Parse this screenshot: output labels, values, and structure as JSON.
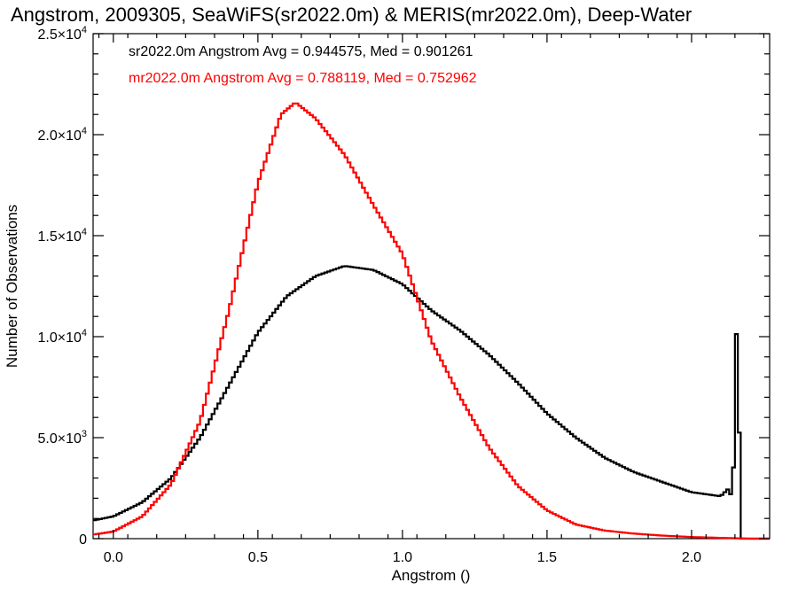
{
  "chart_data": {
    "type": "line",
    "title": "Angstrom, 2009305, SeaWiFS(sr2022.0m) & MERIS(mr2022.0m), Deep-Water",
    "xlabel": "Angstrom ()",
    "ylabel": "Number of Observations",
    "xlim": [
      -0.07,
      2.27
    ],
    "ylim": [
      0,
      25000
    ],
    "xticks": [
      {
        "value": 0.0,
        "label": "0.0"
      },
      {
        "value": 0.5,
        "label": "0.5"
      },
      {
        "value": 1.0,
        "label": "1.0"
      },
      {
        "value": 1.5,
        "label": "1.5"
      },
      {
        "value": 2.0,
        "label": "2.0"
      }
    ],
    "yticks": [
      {
        "value": 0,
        "mant": "0",
        "exp": ""
      },
      {
        "value": 5000,
        "mant": "5.0×10",
        "exp": "3"
      },
      {
        "value": 10000,
        "mant": "1.0×10",
        "exp": "4"
      },
      {
        "value": 15000,
        "mant": "1.5×10",
        "exp": "4"
      },
      {
        "value": 20000,
        "mant": "2.0×10",
        "exp": "4"
      },
      {
        "value": 25000,
        "mant": "2.5×10",
        "exp": "4"
      }
    ],
    "grid": false,
    "legend": [
      {
        "text": "sr2022.0m Angstrom Avg = 0.944575, Med = 0.901261",
        "color": "#000000"
      },
      {
        "text": "mr2022.0m Angstrom Avg = 0.788119, Med = 0.752962",
        "color": "#ff0000"
      }
    ],
    "series": [
      {
        "name": "sr2022.0m",
        "color": "#000000",
        "points": [
          [
            -0.07,
            900
          ],
          [
            0.0,
            1100
          ],
          [
            0.1,
            1800
          ],
          [
            0.2,
            3000
          ],
          [
            0.3,
            5000
          ],
          [
            0.4,
            7600
          ],
          [
            0.5,
            10200
          ],
          [
            0.6,
            12000
          ],
          [
            0.7,
            13000
          ],
          [
            0.8,
            13500
          ],
          [
            0.9,
            13300
          ],
          [
            1.0,
            12600
          ],
          [
            1.1,
            11300
          ],
          [
            1.2,
            10300
          ],
          [
            1.3,
            9100
          ],
          [
            1.4,
            7700
          ],
          [
            1.5,
            6200
          ],
          [
            1.6,
            5000
          ],
          [
            1.7,
            4000
          ],
          [
            1.8,
            3300
          ],
          [
            1.9,
            2800
          ],
          [
            2.0,
            2300
          ],
          [
            2.1,
            2100
          ],
          [
            2.13,
            2500
          ],
          [
            2.14,
            1900
          ],
          [
            2.148,
            4500
          ],
          [
            2.152,
            9000
          ],
          [
            2.156,
            10500
          ],
          [
            2.162,
            10500
          ],
          [
            2.168,
            0
          ],
          [
            2.27,
            0
          ]
        ]
      },
      {
        "name": "mr2022.0m",
        "color": "#ff0000",
        "points": [
          [
            -0.07,
            200
          ],
          [
            0.0,
            350
          ],
          [
            0.1,
            1100
          ],
          [
            0.2,
            2700
          ],
          [
            0.3,
            5800
          ],
          [
            0.4,
            11300
          ],
          [
            0.5,
            17600
          ],
          [
            0.58,
            21000
          ],
          [
            0.63,
            21600
          ],
          [
            0.7,
            20800
          ],
          [
            0.8,
            19000
          ],
          [
            0.9,
            16500
          ],
          [
            1.0,
            14100
          ],
          [
            1.1,
            9800
          ],
          [
            1.2,
            7000
          ],
          [
            1.3,
            4500
          ],
          [
            1.4,
            2600
          ],
          [
            1.5,
            1400
          ],
          [
            1.6,
            700
          ],
          [
            1.7,
            400
          ],
          [
            1.8,
            250
          ],
          [
            1.9,
            150
          ],
          [
            2.0,
            80
          ],
          [
            2.1,
            40
          ],
          [
            2.15,
            20
          ],
          [
            2.2,
            0
          ],
          [
            2.27,
            0
          ]
        ]
      }
    ]
  }
}
